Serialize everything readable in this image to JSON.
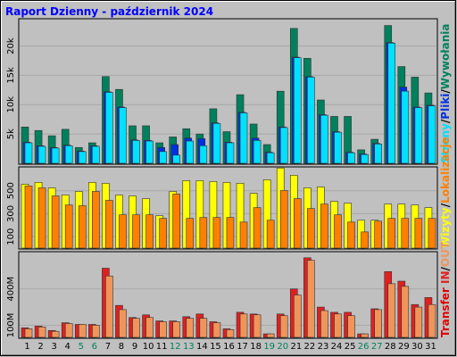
{
  "chart_data": [
    {
      "type": "bar",
      "title": "Raport Dzienny -  październik 2024",
      "legend_separator": "/",
      "legend_order": "reverse",
      "ylim": [
        0,
        24500
      ],
      "yticks": [
        {
          "value": 5000,
          "label": "5k"
        },
        {
          "value": 10000,
          "label": "10k"
        },
        {
          "value": 15000,
          "label": "15k"
        },
        {
          "value": 20000,
          "label": "20k"
        }
      ],
      "series": [
        {
          "name": "Wywołania",
          "color": "#00805C",
          "values": [
            6200,
            5600,
            4700,
            5800,
            2700,
            3500,
            14800,
            12600,
            6400,
            6400,
            3500,
            4500,
            5900,
            5000,
            9300,
            5400,
            11700,
            6700,
            3200,
            12300,
            23000,
            17900,
            10800,
            8000,
            8000,
            2300,
            4100,
            23500,
            16500,
            14700,
            12000
          ]
        },
        {
          "name": "Pliki",
          "color": "#0030E0",
          "values": [
            3600,
            3000,
            2700,
            3100,
            2100,
            3000,
            12200,
            9600,
            4000,
            3900,
            2700,
            3200,
            4300,
            4200,
            6900,
            3600,
            8700,
            4300,
            1900,
            6200,
            18100,
            14800,
            8300,
            5400,
            1900,
            1600,
            3400,
            20600,
            13000,
            9600,
            9900
          ]
        },
        {
          "name": "Strony",
          "color": "#00E0FF",
          "values": [
            3500,
            2900,
            2600,
            3000,
            2000,
            2900,
            12100,
            9500,
            3900,
            3800,
            2000,
            1400,
            3800,
            3000,
            6800,
            3500,
            8600,
            3900,
            1800,
            6100,
            18000,
            14700,
            8200,
            5300,
            1800,
            1500,
            3300,
            20500,
            12300,
            9500,
            9800
          ]
        }
      ]
    },
    {
      "type": "bar",
      "legend_order": "forward",
      "ylim": [
        0,
        700
      ],
      "yticks": [
        100,
        300,
        500
      ],
      "series": [
        {
          "name": "Wizyty",
          "color": "#FFFF00",
          "values": [
            557,
            573,
            525,
            463,
            494,
            573,
            565,
            463,
            455,
            431,
            282,
            494,
            588,
            588,
            580,
            573,
            565,
            478,
            596,
            698,
            635,
            525,
            533,
            408,
            392,
            243,
            243,
            384,
            384,
            376,
            353
          ]
        },
        {
          "name": "Lokalizacje",
          "color": "#FF8000",
          "values": [
            541,
            525,
            455,
            376,
            369,
            494,
            416,
            290,
            290,
            290,
            259,
            471,
            259,
            267,
            267,
            267,
            227,
            353,
            243,
            502,
            431,
            345,
            384,
            290,
            227,
            141,
            235,
            259,
            259,
            259,
            259
          ]
        }
      ]
    },
    {
      "type": "bar",
      "legend_order": "forward",
      "axis_label": "Transfer",
      "axis_label_color": "#E00000",
      "ylim": [
        0,
        700
      ],
      "yticks": [
        {
          "value": 100,
          "label": "100M"
        },
        {
          "value": 400,
          "label": "400M"
        }
      ],
      "categories": [
        "1",
        "2",
        "3",
        "4",
        "5",
        "6",
        "7",
        "8",
        "9",
        "10",
        "11",
        "12",
        "13",
        "14",
        "15",
        "16",
        "17",
        "18",
        "19",
        "20",
        "21",
        "22",
        "23",
        "24",
        "25",
        "26",
        "27",
        "28",
        "29",
        "30",
        "31"
      ],
      "category_colors": [
        "#000000",
        "#000000",
        "#000000",
        "#000000",
        "#00805C",
        "#00805C",
        "#000000",
        "#000000",
        "#000000",
        "#000000",
        "#000000",
        "#00805C",
        "#00805C",
        "#000000",
        "#000000",
        "#000000",
        "#000000",
        "#000000",
        "#00805C",
        "#00805C",
        "#000000",
        "#000000",
        "#000000",
        "#000000",
        "#000000",
        "#00805C",
        "#00805C",
        "#000000",
        "#000000",
        "#000000",
        "#000000"
      ],
      "series": [
        {
          "name": "IN",
          "color": "#E02020",
          "values": [
            79,
            93,
            57,
            121,
            107,
            107,
            571,
            264,
            164,
            186,
            136,
            136,
            171,
            193,
            129,
            71,
            207,
            193,
            29,
            193,
            400,
            657,
            250,
            207,
            207,
            29,
            236,
            543,
            464,
            271,
            329
          ]
        },
        {
          "name": "OUT",
          "color": "#F0955A",
          "values": [
            71,
            86,
            50,
            114,
            107,
            100,
            507,
            229,
            157,
            164,
            129,
            129,
            157,
            157,
            121,
            64,
            193,
            186,
            29,
            179,
            350,
            636,
            221,
            193,
            179,
            29,
            229,
            443,
            421,
            250,
            271
          ]
        }
      ]
    }
  ]
}
